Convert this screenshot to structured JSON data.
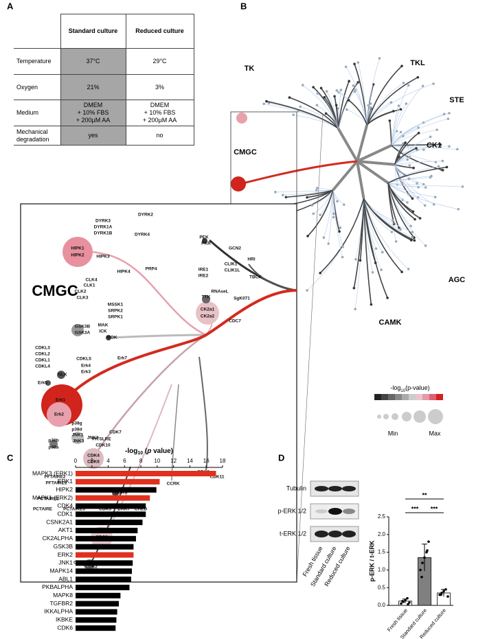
{
  "panel_labels": {
    "a": "A",
    "b": "B",
    "c": "C",
    "d": "D"
  },
  "table": {
    "header": [
      "Standard culture",
      "Reduced culture"
    ],
    "rows": [
      [
        "Temperature",
        "37°C",
        "29°C"
      ],
      [
        "Oxygen",
        "21%",
        "3%"
      ],
      [
        "Medium",
        "DMEM\n+ 10% FBS\n+ 200µM AA",
        "DMEM\n+ 10% FBS\n+ 200µM AA"
      ],
      [
        "Mechanical degradation",
        "yes",
        "no"
      ]
    ]
  },
  "kinome": {
    "groups": [
      "TK",
      "TKL",
      "STE",
      "CK1",
      "AGC",
      "CAMK",
      "CMGC"
    ],
    "zoom": {
      "title": "CMGC",
      "labels": [
        "DYRK2",
        "DYRK3",
        "DYRK1A",
        "DYRK1B",
        "DYRK4",
        "HIPK3",
        "HIPK1",
        "HIPK2",
        "HIPK4",
        "PRP4",
        "CLK4",
        "CLK1",
        "CLK2",
        "CLK3",
        "MSSK1",
        "SRPK2",
        "SRPK1",
        "MAK",
        "ICK",
        "GSK3B",
        "GSK3A",
        "MOK",
        "CDKL3",
        "CDKL2",
        "CDKL1",
        "CDKL4",
        "CDKL5",
        "Erk7",
        "Erk4",
        "Erk3",
        "NLK",
        "Erk5",
        "Erk1",
        "Erk2",
        "p38g",
        "p38d",
        "p38b",
        "p38a",
        "JNK1",
        "JNK3",
        "JNK2",
        "CDK7",
        "PITSLRE",
        "CDK10",
        "CDK4",
        "CDK6",
        "PFTAIRE2",
        "PFTAIRE1",
        "PCTAIRE2",
        "PCTAIRE",
        "PCTAIRE3",
        "CDK5",
        "CRK7",
        "CHED",
        "CDK9",
        "CCRK",
        "CDK8",
        "CDK11",
        "CDC2",
        "CDK3",
        "CDK2",
        "PEK",
        "PKR",
        "GCN2",
        "HRI",
        "IRE1",
        "IRE2",
        "CLIK1",
        "CLIK1L",
        "TBCK",
        "RNAseL",
        "TTK",
        "SgK071",
        "CK2a1",
        "CK2a2",
        "CDC7"
      ]
    },
    "legend": {
      "title_parts": [
        "-log",
        "10",
        "(p-value)"
      ],
      "min": "Min",
      "max": "Max"
    }
  },
  "blot": {
    "rows": [
      "Tubulin",
      "p-ERK 1/2",
      "t-ERK 1/2"
    ],
    "lanes": [
      "Fresh tissue",
      "Standard culture",
      "Reduced culture"
    ]
  },
  "chart_data": [
    {
      "type": "hbar",
      "xlabel_parts": [
        "-log",
        "10",
        " (",
        "p",
        " value)"
      ],
      "categories": [
        "MAPK3 (ERK1)",
        "ERK1",
        "HIPK2",
        "MAPK1 (ERK2)",
        "CDK4",
        "CDK1",
        "CSNK2A1",
        "AKT1",
        "CK2ALPHA",
        "GSK3B",
        "ERK2",
        "JNK1",
        "MAPK14",
        "ABL1",
        "PKBALPHA",
        "MAPK8",
        "TGFBR2",
        "IKKALPHA",
        "IKBKE",
        "CDK6"
      ],
      "values": [
        17.2,
        10.3,
        9.9,
        9.1,
        8.6,
        8.6,
        8.2,
        7.6,
        7.4,
        7.1,
        7.1,
        7.0,
        6.9,
        6.8,
        6.6,
        5.5,
        5.3,
        5.1,
        5.0,
        4.9
      ],
      "colors": [
        "#e0301e",
        "#e0301e",
        "#000000",
        "#e0301e",
        "#000000",
        "#000000",
        "#000000",
        "#000000",
        "#000000",
        "#000000",
        "#e0301e",
        "#000000",
        "#000000",
        "#000000",
        "#000000",
        "#000000",
        "#000000",
        "#000000",
        "#000000",
        "#000000"
      ],
      "xlim": [
        0,
        18
      ],
      "xticks": [
        0,
        2,
        4,
        6,
        8,
        10,
        12,
        14,
        16,
        18
      ]
    },
    {
      "type": "bar",
      "ylabel": "p-ERK / t-ERK",
      "categories": [
        "Fresh tissue",
        "Standard culture",
        "Reduced culture"
      ],
      "values": [
        0.12,
        1.35,
        0.35
      ],
      "errors": [
        0.06,
        0.38,
        0.1
      ],
      "colors": [
        "#ffffff",
        "#808080",
        "#ffffff"
      ],
      "points": [
        [
          0.05,
          0.1,
          0.15,
          0.2,
          0.08,
          0.12,
          0.03
        ],
        [
          1.0,
          1.2,
          1.35,
          1.5,
          1.8,
          0.8,
          1.55
        ],
        [
          0.3,
          0.35,
          0.4,
          0.45,
          0.25,
          0.3
        ]
      ],
      "ylim": [
        0,
        2.5
      ],
      "yticks": [
        {
          "value": 0,
          "label": "0.0"
        },
        {
          "value": 0.5,
          "label": "0.5"
        },
        {
          "value": 1,
          "label": "1.0"
        },
        {
          "value": 1.5,
          "label": "1.5"
        },
        {
          "value": 2,
          "label": "2.0"
        },
        {
          "value": 2.5,
          "label": "2.5"
        }
      ],
      "significance": [
        {
          "pair": [
            0,
            2
          ],
          "label": "**"
        },
        {
          "pair": [
            0,
            1
          ],
          "label": "***"
        },
        {
          "pair": [
            1,
            2
          ],
          "label": "***"
        }
      ]
    }
  ]
}
